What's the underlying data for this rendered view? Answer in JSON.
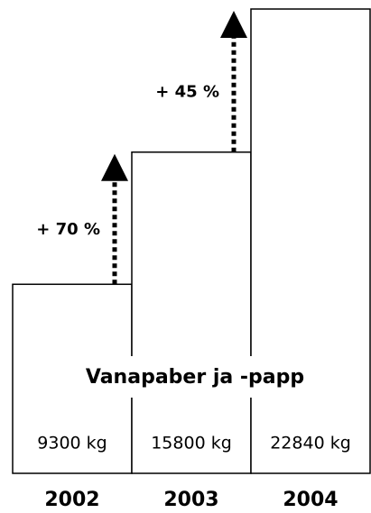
{
  "chart_data": {
    "type": "bar",
    "title": "Vanapaber ja -papp",
    "categories": [
      "2002",
      "2003",
      "2004"
    ],
    "values": [
      9300,
      15800,
      22840
    ],
    "value_labels": [
      "9300 kg",
      "15800 kg",
      "22840 kg"
    ],
    "annotations": [
      "+ 70 %",
      "+ 45 %"
    ],
    "color": "#ffffff"
  }
}
